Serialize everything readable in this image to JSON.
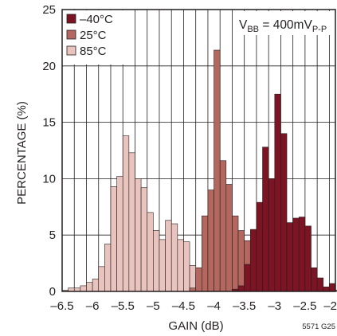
{
  "chart_data": {
    "type": "bar",
    "title": "",
    "xlabel": "GAIN (dB)",
    "ylabel": "PERCENTAGE (%)",
    "xlim": [
      -6.5,
      -2
    ],
    "ylim": [
      0,
      25
    ],
    "x_tick_values": [
      -6.5,
      -6,
      -5.5,
      -5,
      -4.5,
      -4,
      -3.5,
      -3,
      -2.5,
      -2
    ],
    "x_tick_labels": [
      "–6.5",
      "–6",
      "–5.5",
      "–5",
      "–4.5",
      "–4",
      "–3.5",
      "–3",
      "–2.5",
      "–2"
    ],
    "y_tick_values": [
      0,
      5,
      10,
      15,
      20,
      25
    ],
    "y_tick_labels": [
      "0",
      "5",
      "10",
      "15",
      "20",
      "25"
    ],
    "grid": true,
    "legend_position": "top-left",
    "bin_width": 0.1,
    "annotation": {
      "base": "V",
      "sub1": "BB",
      "mid": " = 400mV",
      "sub2": "P-P"
    },
    "figure_code": "5571 G25",
    "series": [
      {
        "name": "85°C",
        "color": "#e9c3bd",
        "bins": [
          [
            -6.5,
            0.1
          ],
          [
            -6.4,
            0.3
          ],
          [
            -6.3,
            0.3
          ],
          [
            -6.2,
            0.5
          ],
          [
            -6.1,
            0.8
          ],
          [
            -6.0,
            1.1
          ],
          [
            -5.9,
            2.2
          ],
          [
            -5.8,
            4.2
          ],
          [
            -5.7,
            9.3
          ],
          [
            -5.6,
            10.2
          ],
          [
            -5.5,
            13.8
          ],
          [
            -5.4,
            12.3
          ],
          [
            -5.3,
            10.0
          ],
          [
            -5.2,
            9.2
          ],
          [
            -5.1,
            7.0
          ],
          [
            -5.0,
            5.4
          ],
          [
            -4.9,
            4.6
          ],
          [
            -4.8,
            6.3
          ],
          [
            -4.7,
            6.0
          ],
          [
            -4.6,
            4.6
          ],
          [
            -4.5,
            4.4
          ],
          [
            -4.4,
            2.3
          ],
          [
            -4.3,
            1.6
          ],
          [
            -4.2,
            0.8
          ],
          [
            -4.1,
            1.0
          ],
          [
            -4.0,
            0.5
          ],
          [
            -3.9,
            0.3
          ],
          [
            -3.8,
            0.2
          ]
        ]
      },
      {
        "name": "25°C",
        "color": "#b4675f",
        "bins": [
          [
            -4.4,
            0.3
          ],
          [
            -4.3,
            2.1
          ],
          [
            -4.2,
            6.7
          ],
          [
            -4.1,
            9.0
          ],
          [
            -4.0,
            21.4
          ],
          [
            -3.9,
            11.6
          ],
          [
            -3.8,
            9.5
          ],
          [
            -3.7,
            6.7
          ],
          [
            -3.6,
            5.4
          ],
          [
            -3.5,
            4.5
          ],
          [
            -3.4,
            4.5
          ],
          [
            -3.3,
            5.0
          ],
          [
            -3.2,
            4.4
          ],
          [
            -3.1,
            1.8
          ],
          [
            -3.0,
            1.2
          ],
          [
            -2.9,
            0.5
          ],
          [
            -2.8,
            0.3
          ],
          [
            -2.7,
            0.2
          ],
          [
            -2.6,
            0.1
          ],
          [
            -2.5,
            0.1
          ],
          [
            -2.4,
            0.0
          ],
          [
            -2.3,
            0.1
          ]
        ]
      },
      {
        "name": "–40°C",
        "color": "#7c1424",
        "bins": [
          [
            -3.7,
            0.2
          ],
          [
            -3.6,
            0.5
          ],
          [
            -3.5,
            2.4
          ],
          [
            -3.4,
            5.5
          ],
          [
            -3.3,
            7.9
          ],
          [
            -3.2,
            12.8
          ],
          [
            -3.1,
            10.0
          ],
          [
            -3.0,
            17.5
          ],
          [
            -2.9,
            14.0
          ],
          [
            -2.8,
            6.1
          ],
          [
            -2.7,
            6.5
          ],
          [
            -2.6,
            6.6
          ],
          [
            -2.5,
            5.8
          ],
          [
            -2.4,
            2.1
          ],
          [
            -2.3,
            1.2
          ],
          [
            -2.2,
            0.4
          ],
          [
            -2.1,
            0.7
          ],
          [
            -2.0,
            0.1
          ]
        ]
      }
    ],
    "legend_order": [
      "–40°C",
      "25°C",
      "85°C"
    ]
  }
}
